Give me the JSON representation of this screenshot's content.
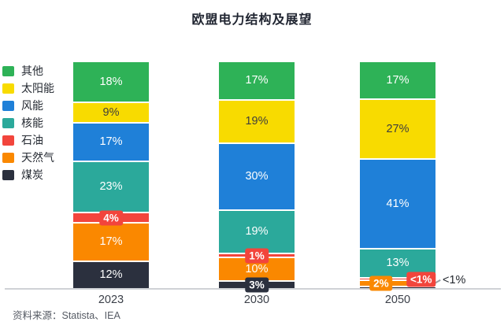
{
  "title": "欧盟电力结构及展望",
  "source_note": "资料来源：Statista、IEA",
  "chart_data": {
    "type": "bar",
    "stacked": true,
    "unit": "%",
    "title": "欧盟电力结构及展望",
    "categories": [
      "2023",
      "2030",
      "2050"
    ],
    "ylim": [
      0,
      100
    ],
    "grid": false,
    "legend_position": "left",
    "axis_line_color": "#cfd2d6",
    "series": [
      {
        "name": "其他",
        "color": "#2eb257",
        "values": [
          18,
          17,
          17
        ]
      },
      {
        "name": "太阳能",
        "color": "#f8db00",
        "values": [
          9,
          19,
          27
        ]
      },
      {
        "name": "风能",
        "color": "#1f80d8",
        "values": [
          17,
          30,
          41
        ]
      },
      {
        "name": "核能",
        "color": "#2ba99b",
        "values": [
          23,
          19,
          13
        ]
      },
      {
        "name": "石油",
        "color": "#f2453c",
        "values": [
          4,
          1,
          0.4
        ]
      },
      {
        "name": "天然气",
        "color": "#fa8800",
        "values": [
          17,
          10,
          2
        ]
      },
      {
        "name": "煤炭",
        "color": "#2b303e",
        "values": [
          12,
          3,
          0.4
        ]
      }
    ],
    "bars": [
      {
        "category": "2023",
        "segments": [
          {
            "series": "煤炭",
            "value": 12,
            "label": "12%",
            "label_mode": "inline"
          },
          {
            "series": "天然气",
            "value": 17,
            "label": "17%",
            "label_mode": "inline"
          },
          {
            "series": "石油",
            "value": 4,
            "label": "4%",
            "label_mode": "badge"
          },
          {
            "series": "核能",
            "value": 23,
            "label": "23%",
            "label_mode": "inline"
          },
          {
            "series": "风能",
            "value": 17,
            "label": "17%",
            "label_mode": "inline"
          },
          {
            "series": "太阳能",
            "value": 9,
            "label": "9%",
            "label_mode": "inline-dark"
          },
          {
            "series": "其他",
            "value": 18,
            "label": "18%",
            "label_mode": "inline"
          }
        ]
      },
      {
        "category": "2030",
        "segments": [
          {
            "series": "煤炭",
            "value": 3,
            "label": "3%",
            "label_mode": "badge"
          },
          {
            "series": "天然气",
            "value": 10,
            "label": "10%",
            "label_mode": "inline"
          },
          {
            "series": "石油",
            "value": 1,
            "label": "1%",
            "label_mode": "badge"
          },
          {
            "series": "核能",
            "value": 19,
            "label": "19%",
            "label_mode": "inline"
          },
          {
            "series": "风能",
            "value": 30,
            "label": "30%",
            "label_mode": "inline"
          },
          {
            "series": "太阳能",
            "value": 19,
            "label": "19%",
            "label_mode": "inline-dark"
          },
          {
            "series": "其他",
            "value": 17,
            "label": "17%",
            "label_mode": "inline"
          }
        ]
      },
      {
        "category": "2050",
        "segments": [
          {
            "series": "煤炭",
            "value": 0.4,
            "label": "<1%",
            "label_mode": "outside"
          },
          {
            "series": "天然气",
            "value": 2,
            "label": "2%",
            "label_mode": "badge-left"
          },
          {
            "series": "石油",
            "value": 0.4,
            "label": "<1%",
            "label_mode": "badge-right"
          },
          {
            "series": "核能",
            "value": 13,
            "label": "13%",
            "label_mode": "inline"
          },
          {
            "series": "风能",
            "value": 41,
            "label": "41%",
            "label_mode": "inline"
          },
          {
            "series": "太阳能",
            "value": 27,
            "label": "27%",
            "label_mode": "inline-dark"
          },
          {
            "series": "其他",
            "value": 17,
            "label": "17%",
            "label_mode": "inline"
          }
        ]
      }
    ]
  }
}
